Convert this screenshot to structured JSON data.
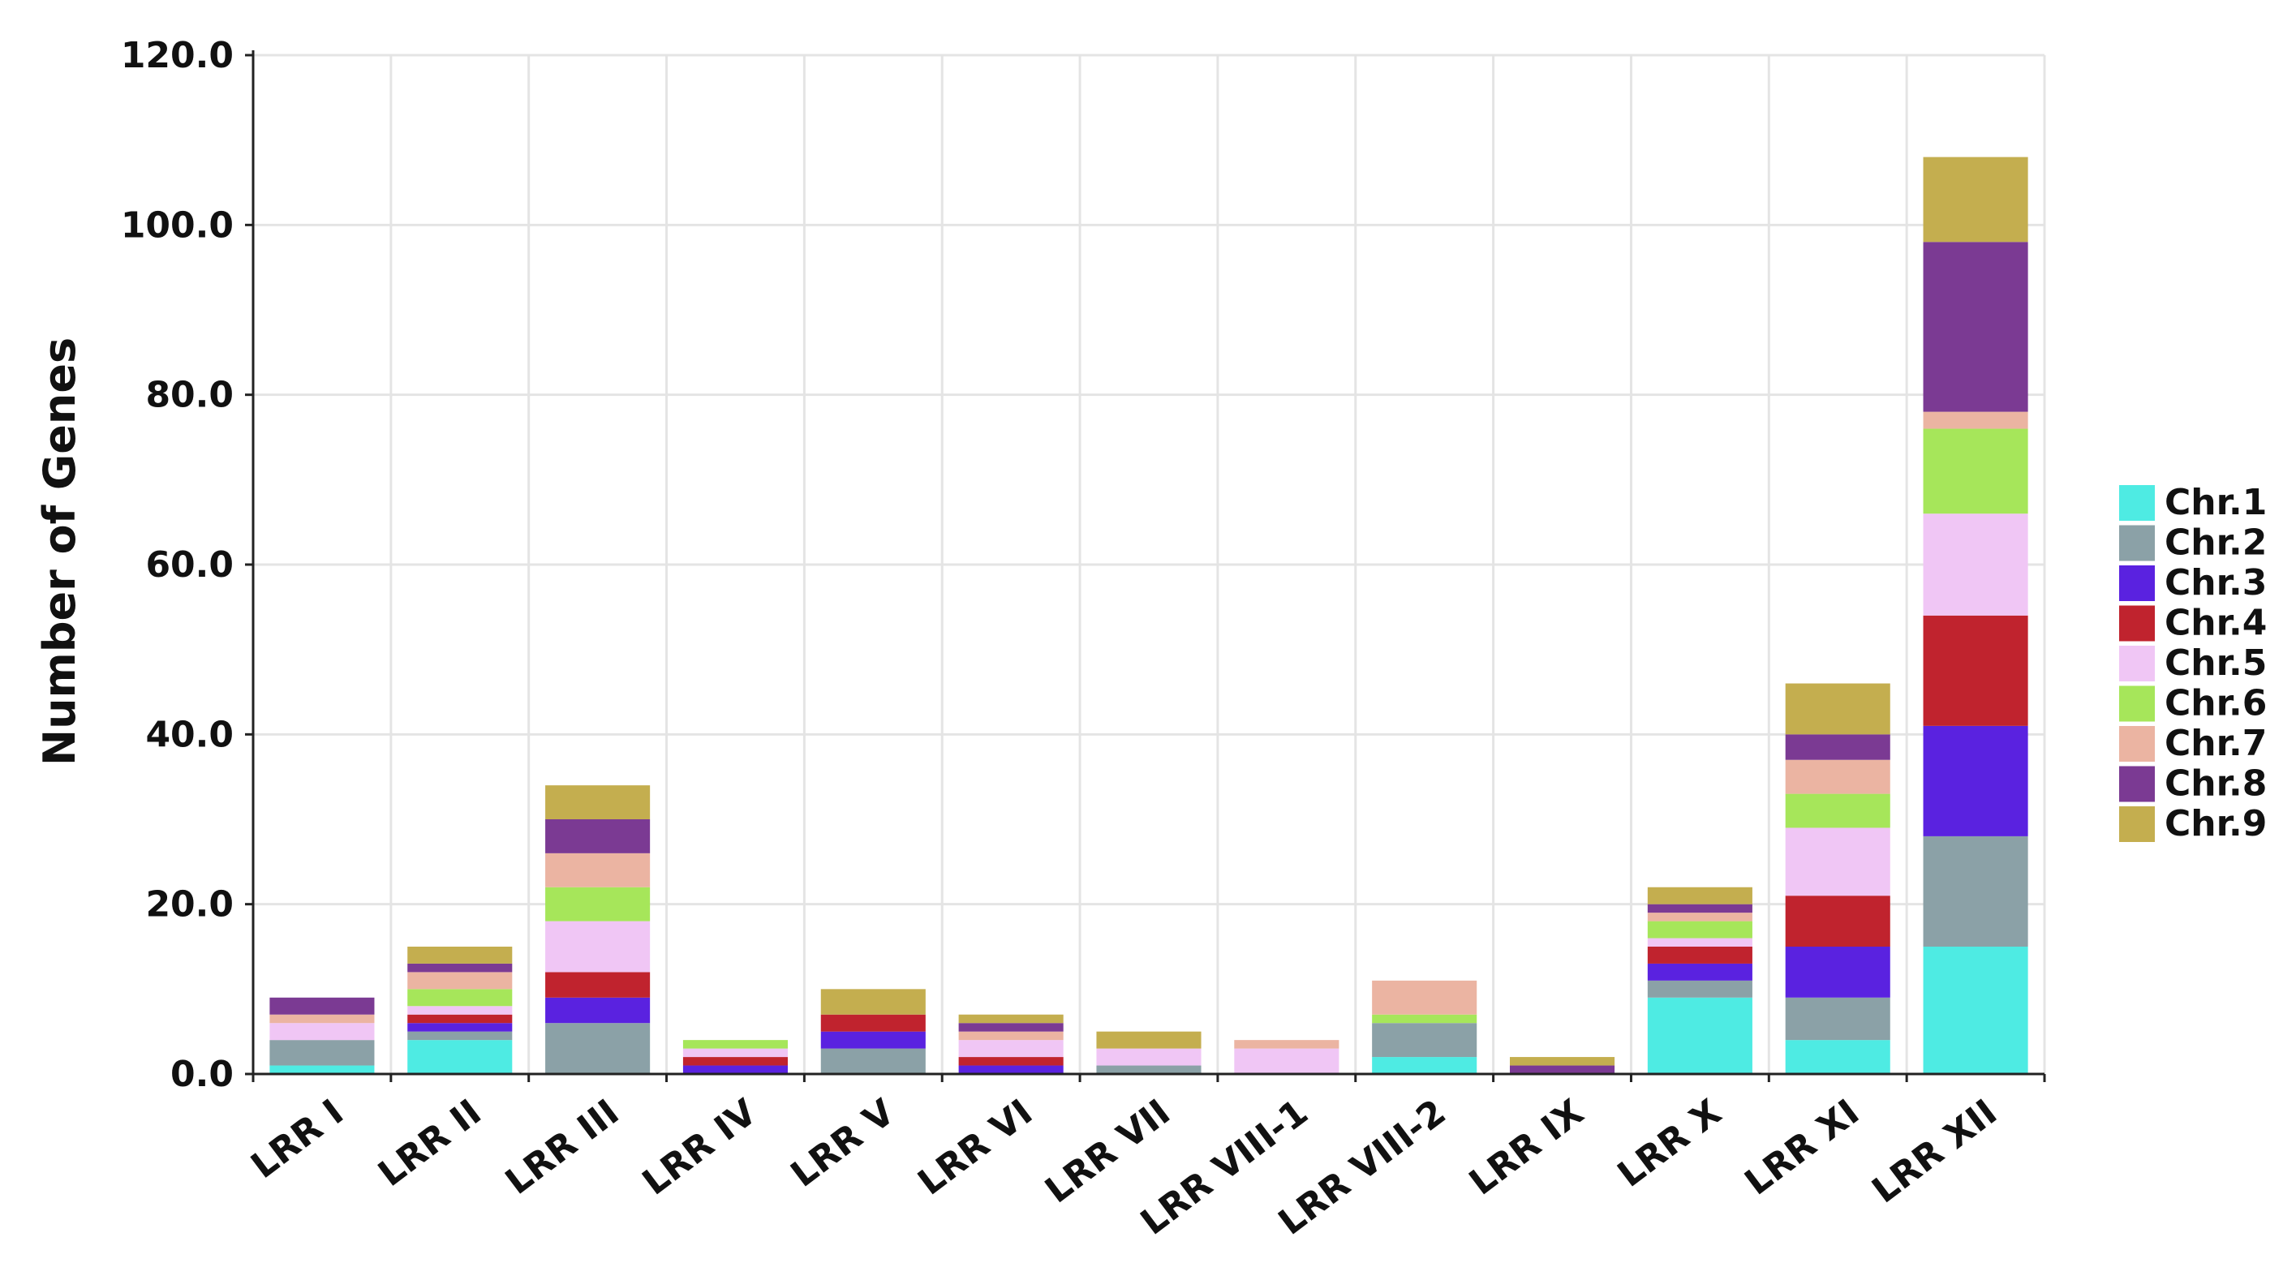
{
  "chart_data": {
    "type": "bar",
    "stacked": true,
    "title": "",
    "xlabel": "",
    "ylabel": "Number of Genes",
    "ylim": [
      0,
      120
    ],
    "yticks": [
      "0.0",
      "20.0",
      "40.0",
      "60.0",
      "80.0",
      "100.0",
      "120.0"
    ],
    "grid": true,
    "legend_position": "right",
    "categories": [
      "LRR I",
      "LRR II",
      "LRR III",
      "LRR IV",
      "LRR V",
      "LRR VI",
      "LRR VII",
      "LRR VIII-1",
      "LRR VIII-2",
      "LRR IX",
      "LRR X",
      "LRR XI",
      "LRR XII"
    ],
    "series": [
      {
        "name": "Chr.1",
        "color": "#4EEBE3",
        "values": [
          1,
          4,
          0,
          0,
          0,
          0,
          0,
          0,
          2,
          0,
          9,
          4,
          15
        ]
      },
      {
        "name": "Chr.2",
        "color": "#8BA1A7",
        "values": [
          3,
          1,
          6,
          0,
          3,
          0,
          1,
          0,
          4,
          0,
          2,
          5,
          13
        ]
      },
      {
        "name": "Chr.3",
        "color": "#5A22E0",
        "values": [
          0,
          1,
          3,
          1,
          2,
          1,
          0,
          0,
          0,
          0,
          2,
          6,
          13
        ]
      },
      {
        "name": "Chr.4",
        "color": "#C0232E",
        "values": [
          0,
          1,
          3,
          1,
          2,
          1,
          0,
          0,
          0,
          0,
          2,
          6,
          13
        ]
      },
      {
        "name": "Chr.5",
        "color": "#F0C6F5",
        "values": [
          2,
          1,
          6,
          1,
          0,
          2,
          2,
          3,
          0,
          0,
          1,
          8,
          12
        ]
      },
      {
        "name": "Chr.6",
        "color": "#A6E65A",
        "values": [
          0,
          2,
          4,
          1,
          0,
          0,
          0,
          0,
          1,
          0,
          2,
          4,
          10
        ]
      },
      {
        "name": "Chr.7",
        "color": "#EBB4A2",
        "values": [
          1,
          2,
          4,
          0,
          0,
          1,
          0,
          1,
          4,
          0,
          1,
          4,
          2
        ]
      },
      {
        "name": "Chr.8",
        "color": "#7B3A93",
        "values": [
          2,
          1,
          4,
          0,
          0,
          1,
          0,
          0,
          0,
          1,
          1,
          3,
          20
        ]
      },
      {
        "name": "Chr.9",
        "color": "#C4AE4F",
        "values": [
          0,
          2,
          4,
          0,
          3,
          1,
          2,
          0,
          0,
          1,
          2,
          6,
          10
        ]
      }
    ]
  }
}
